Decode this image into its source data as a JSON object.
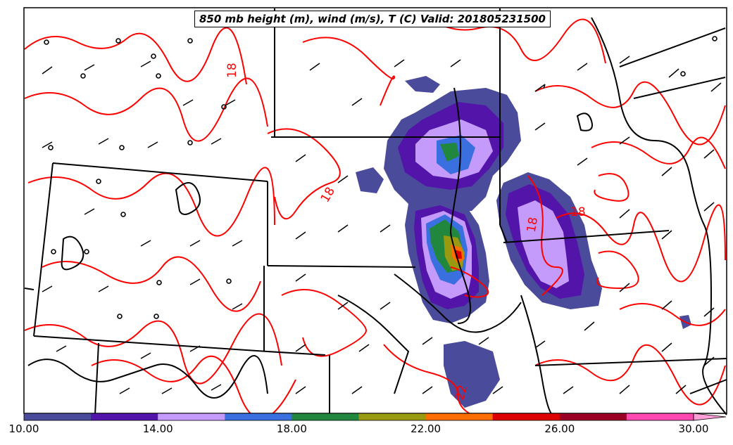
{
  "title": "850 mb height (m), wind (m/s), T (C) Valid: 201805231500",
  "colorbar": {
    "ticks": [
      "10.00",
      "14.00",
      "18.00",
      "22.00",
      "26.00",
      "30.00"
    ],
    "bins": [
      {
        "color": "#4b4b9b"
      },
      {
        "color": "#5314a9"
      },
      {
        "color": "#c49bfa"
      },
      {
        "color": "#3a6fe0"
      },
      {
        "color": "#21873e"
      },
      {
        "color": "#999a0f"
      },
      {
        "color": "#ff6e00"
      },
      {
        "color": "#dd0000"
      },
      {
        "color": "#9a0026"
      },
      {
        "color": "#ff48b0"
      }
    ],
    "extend_color": "#ff9fd8"
  },
  "contour_labels": [
    {
      "text": "18"
    },
    {
      "text": "18"
    },
    {
      "text": "18"
    },
    {
      "text": "18"
    },
    {
      "text": "22"
    }
  ],
  "colors": {
    "isotherm": "#ff0000",
    "borders": "#000000"
  }
}
